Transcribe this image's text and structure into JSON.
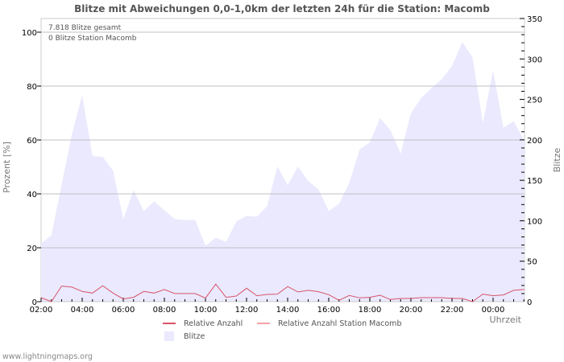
{
  "chart_data": {
    "type": "area",
    "title": "Blitze mit Abweichungen 0,0-1,0km der letzten 24h für die Station: Macomb",
    "info_lines": [
      "7.818 Blitze gesamt",
      "0 Blitze Station Macomb"
    ],
    "xlabel": "Uhrzeit",
    "ylabel_left": "Prozent   [%]",
    "ylabel_right": "Blitze",
    "ylim_left": [
      0,
      100
    ],
    "ylim_right": [
      0,
      350
    ],
    "yticks_left": [
      "0",
      "20",
      "40",
      "60",
      "80",
      "100"
    ],
    "yticks_right": [
      "0",
      "50",
      "100",
      "150",
      "200",
      "250",
      "300",
      "350"
    ],
    "xticks": [
      "02:00",
      "04:00",
      "06:00",
      "08:00",
      "10:00",
      "12:00",
      "14:00",
      "16:00",
      "18:00",
      "20:00",
      "22:00",
      "00:00"
    ],
    "x_hours": [
      0,
      0.5,
      1,
      1.5,
      2,
      2.5,
      3,
      3.5,
      4,
      4.5,
      5,
      5.5,
      6,
      6.5,
      7,
      7.5,
      8,
      8.5,
      9,
      9.5,
      10,
      10.5,
      11,
      11.5,
      12,
      12.5,
      13,
      13.5,
      14,
      14.5,
      15,
      15.5,
      16,
      16.5,
      17,
      17.5,
      18,
      18.5,
      19,
      19.5,
      20,
      20.5,
      21,
      21.5,
      22,
      22.5,
      23,
      23.5
    ],
    "series": [
      {
        "name": "Blitze",
        "axis": "right",
        "color": "#eae9fd",
        "values": [
          72,
          82,
          145,
          207,
          255,
          180,
          179,
          162,
          102,
          138,
          112,
          124,
          113,
          102,
          101,
          101,
          69,
          79,
          74,
          99,
          106,
          105,
          118,
          167,
          144,
          167,
          149,
          139,
          112,
          121,
          147,
          188,
          197,
          227,
          212,
          183,
          233,
          252,
          264,
          275,
          291,
          321,
          302,
          221,
          286,
          215,
          223,
          200
        ]
      },
      {
        "name": "Relative Anzahl",
        "axis": "left",
        "color": "#d9546a",
        "values": [
          1.5,
          0,
          5.8,
          5.4,
          3.8,
          3.2,
          5.9,
          3.2,
          1.0,
          1.6,
          3.8,
          3.2,
          4.5,
          3.0,
          3.0,
          3.0,
          1.3,
          6.5,
          1.6,
          2.1,
          5.0,
          2.2,
          2.7,
          2.8,
          5.6,
          3.6,
          4.2,
          3.7,
          2.6,
          0.5,
          2.3,
          1.4,
          1.6,
          2.4,
          0.8,
          1.2,
          1.2,
          1.5,
          1.5,
          1.5,
          1.2,
          1.2,
          0,
          2.8,
          2.2,
          2.5,
          4.2,
          4.5
        ]
      },
      {
        "name": "Relative Anzahl Station Macomb",
        "axis": "left",
        "color": "#f4a0a8",
        "values": []
      }
    ],
    "legend": {
      "placement": "bottom",
      "items": [
        {
          "label": "Relative Anzahl",
          "color": "#d9546a"
        },
        {
          "label": "Relative Anzahl Station Macomb",
          "color": "#f4a0a8"
        },
        {
          "label": "Blitze",
          "color": "#eae9fd"
        }
      ]
    },
    "grid": true
  },
  "footer": "www.lightningmaps.org"
}
